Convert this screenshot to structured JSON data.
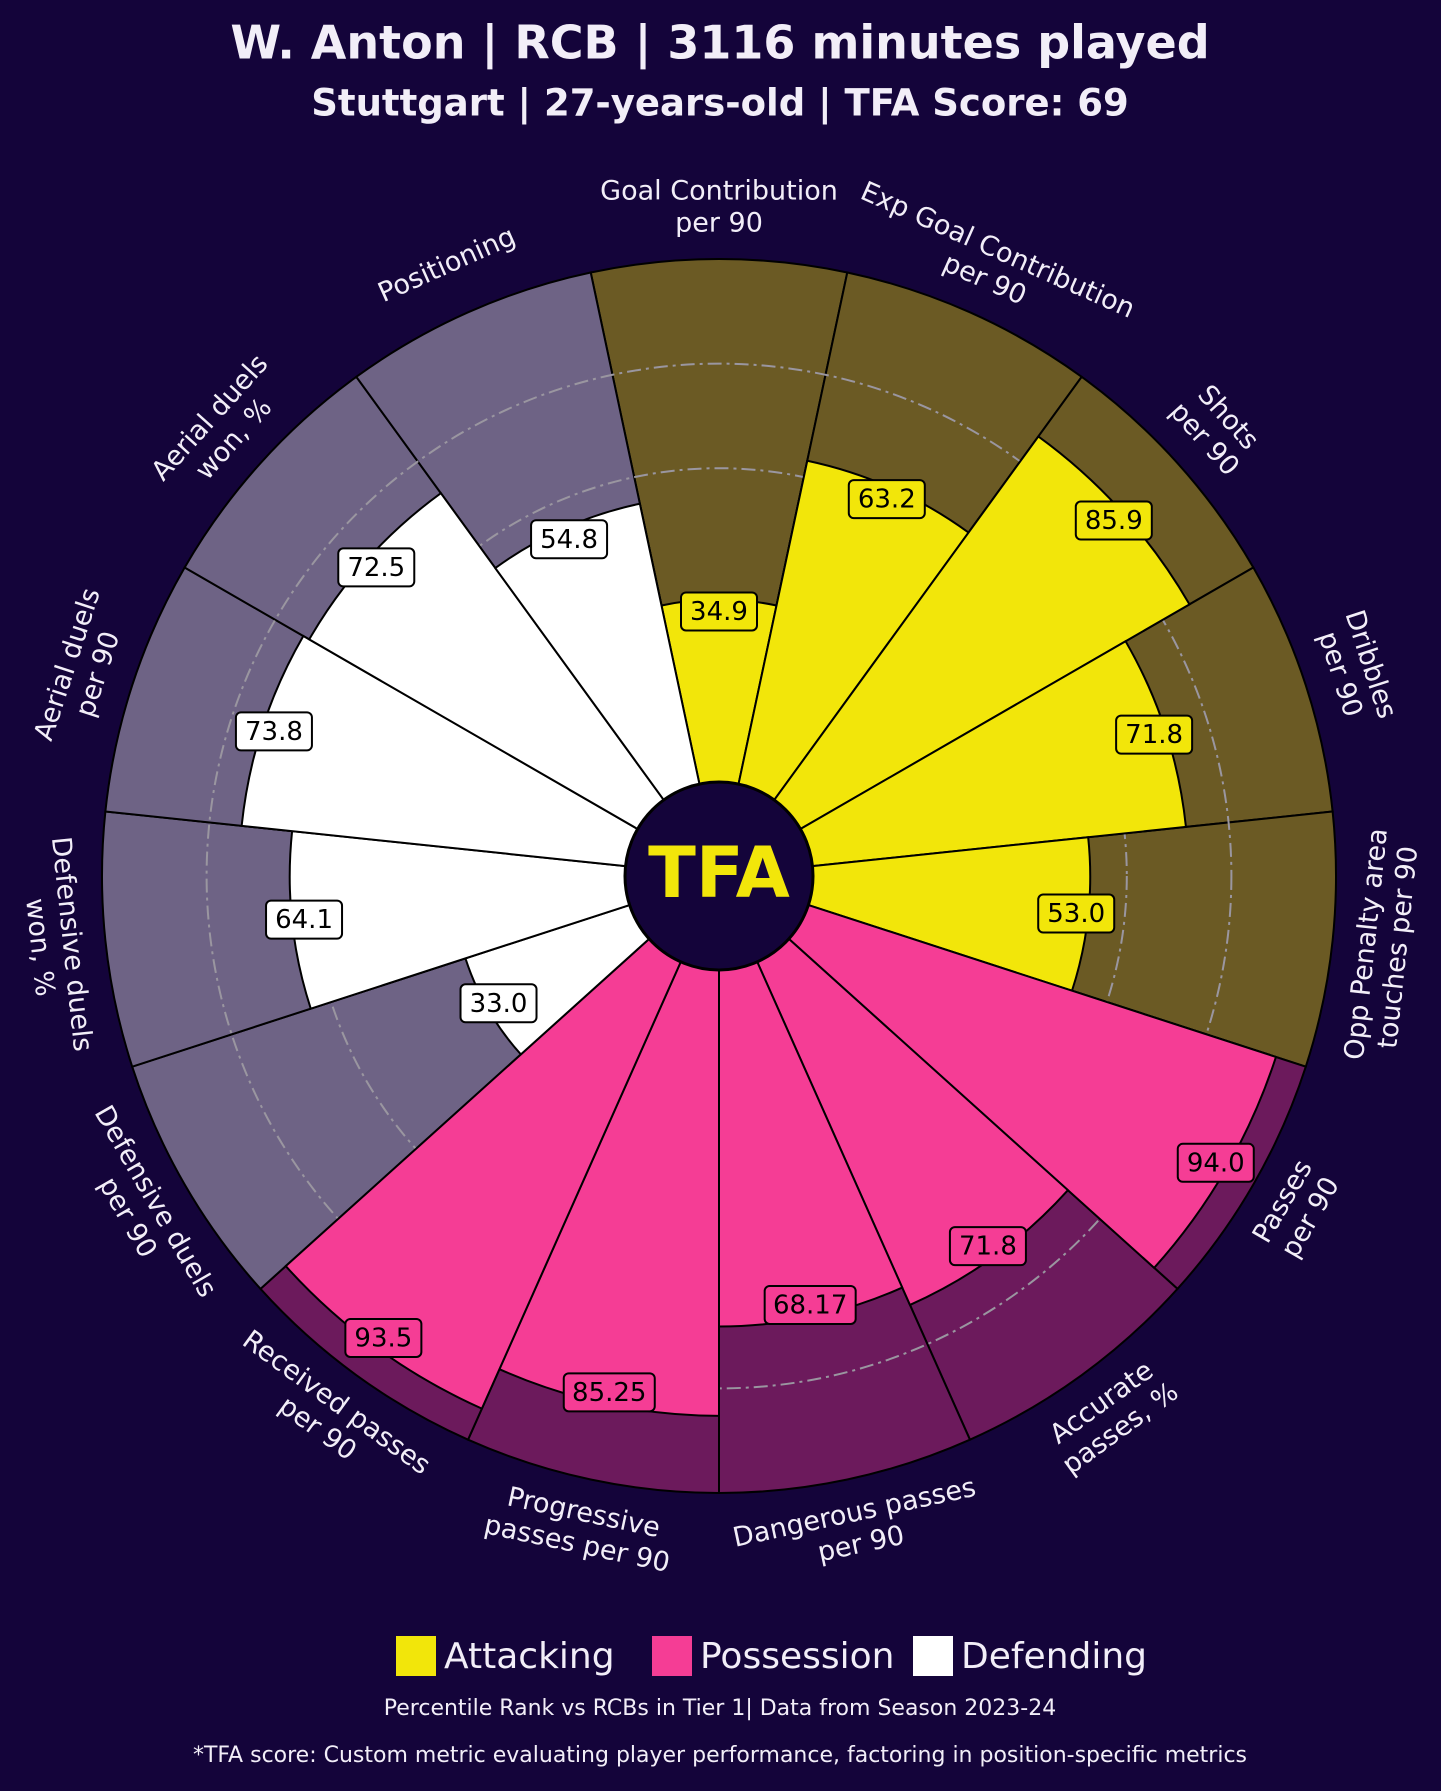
{
  "chart_data": {
    "type": "pizza",
    "title": "W. Anton | RCB | 3116 minutes played",
    "subtitle": "Stuttgart | 27-years-old | TFA Score: 69",
    "center_label": "TFA",
    "categories": [
      [
        "Goal Contribution",
        "per 90"
      ],
      [
        "Exp Goal Contribution",
        "per 90"
      ],
      [
        "Shots",
        "per 90"
      ],
      [
        "Dribbles",
        "per 90"
      ],
      [
        "Opp Penalty area",
        "touches per 90"
      ],
      [
        "Passes",
        "per 90"
      ],
      [
        "Accurate",
        "passes, %"
      ],
      [
        "Dangerous passes",
        "per 90"
      ],
      [
        "Progressive",
        "passes per 90"
      ],
      [
        "Received passes",
        "per 90"
      ],
      [
        "Defensive duels",
        "per 90"
      ],
      [
        "Defensive duels",
        "won, %"
      ],
      [
        "Aerial duels",
        "per 90"
      ],
      [
        "Aerial duels",
        "won, %"
      ],
      [
        "Positioning"
      ]
    ],
    "values": [
      34.9,
      63.2,
      85.9,
      71.8,
      53.0,
      94.0,
      71.8,
      68.17,
      85.25,
      93.5,
      33.0,
      64.1,
      73.8,
      72.5,
      54.8
    ],
    "value_labels": [
      "34.9",
      "63.2",
      "85.9",
      "71.8",
      "53.0",
      "94.0",
      "71.8",
      "68.17",
      "85.25",
      "93.5",
      "33.0",
      "64.1",
      "73.8",
      "72.5",
      "54.8"
    ],
    "slice_groups": [
      0,
      0,
      0,
      0,
      0,
      1,
      1,
      1,
      1,
      1,
      2,
      2,
      2,
      2,
      2
    ],
    "groups": [
      {
        "name": "Attacking",
        "color": "#f2e60a",
        "background": "#6b5a24"
      },
      {
        "name": "Possession",
        "color": "#f53d95",
        "background": "#6c1a5c"
      },
      {
        "name": "Defending",
        "color": "#ffffff",
        "background": "#6e6385"
      }
    ],
    "rlim": [
      0,
      100
    ],
    "rticks": [
      60,
      80
    ],
    "footnote": "Percentile Rank vs RCBs in Tier 1| Data from Season 2023-24",
    "footnote2": "*TFA score: Custom metric evaluating player performance, factoring in position-specific metrics"
  }
}
